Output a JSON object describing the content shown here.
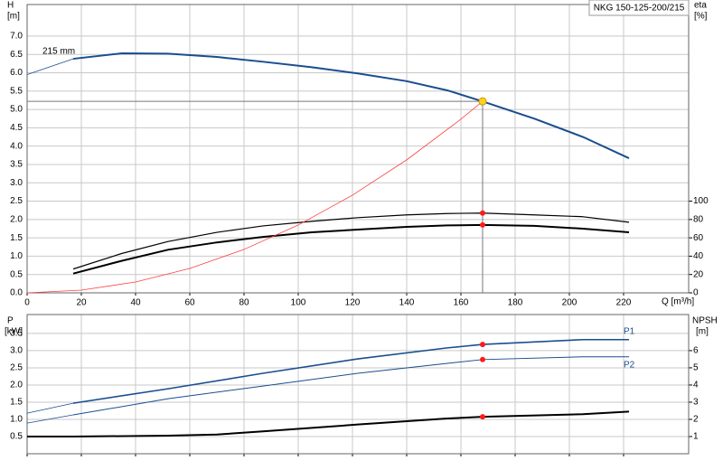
{
  "chart_data": [
    {
      "type": "line",
      "legend": "NKG 150-125-200/215",
      "annotation": "215 mm",
      "ylabel": "H",
      "yunit": "[m]",
      "y2label": "eta",
      "y2unit": "[%]",
      "xlabel": "Q [m³/h]",
      "xlim": [
        0,
        244
      ],
      "xticks": [
        0,
        20,
        40,
        60,
        80,
        100,
        120,
        140,
        160,
        180,
        200,
        220
      ],
      "ylim": [
        0,
        7.86
      ],
      "yticks": [
        {
          "value": 0,
          "label": "0.0"
        },
        0.5,
        {
          "value": 1,
          "label": "1.0"
        },
        1.5,
        {
          "value": 2,
          "label": "2.0"
        },
        2.5,
        {
          "value": 3,
          "label": "3.0"
        },
        3.5,
        {
          "value": 4,
          "label": "4.0"
        },
        4.5,
        {
          "value": 5,
          "label": "5.0"
        },
        5.5,
        {
          "value": 6,
          "label": "6.0"
        },
        6.5,
        {
          "value": 7,
          "label": "7.0"
        }
      ],
      "y2lim": [
        0,
        314.4
      ],
      "y2ticks": [
        0,
        20,
        40,
        60,
        80,
        100
      ],
      "grid": true,
      "duty_q": 168,
      "xtick_labels": true,
      "series": [
        {
          "color": "#1a4d8f",
          "width": 2,
          "thin_start": true,
          "marker": "#ffd21f",
          "crosshair": true,
          "x": [
            0,
            17,
            35,
            52,
            70,
            87,
            105,
            122,
            140,
            155,
            168,
            187,
            205,
            222
          ],
          "values": [
            5.95,
            6.38,
            6.53,
            6.52,
            6.43,
            6.3,
            6.15,
            5.98,
            5.77,
            5.52,
            5.22,
            4.75,
            4.25,
            3.67
          ]
        },
        {
          "color": "#000000",
          "width": 1.2,
          "axis": "y2",
          "marker": "#ff1a1a",
          "x": [
            17,
            35,
            52,
            70,
            87,
            105,
            122,
            140,
            155,
            168,
            187,
            205,
            222
          ],
          "values": [
            26,
            43,
            56,
            66,
            73,
            78,
            82,
            85,
            86.5,
            87,
            85,
            83,
            77
          ]
        },
        {
          "color": "#000000",
          "width": 2,
          "axis": "y2",
          "marker": "#ff1a1a",
          "x": [
            17,
            35,
            52,
            70,
            87,
            105,
            122,
            140,
            155,
            168,
            187,
            205,
            222
          ],
          "values": [
            21,
            35,
            47,
            55,
            61,
            66,
            69,
            72,
            73.5,
            74,
            73,
            70,
            66
          ]
        },
        {
          "color": "#ff4040",
          "width": 0.8,
          "x": [
            0,
            20,
            40,
            60,
            80,
            100,
            120,
            140,
            160,
            168
          ],
          "values": [
            0,
            0.074,
            0.296,
            0.666,
            1.184,
            1.849,
            2.663,
            3.625,
            4.735,
            5.22
          ]
        }
      ]
    },
    {
      "type": "line",
      "ylabel": "P",
      "yunit": "[kW]",
      "y2label": "NPSH",
      "y2unit": "[m]",
      "xlim": [
        0,
        244
      ],
      "xticks": [
        0,
        20,
        40,
        60,
        80,
        100,
        120,
        140,
        160,
        180,
        200,
        220
      ],
      "ylim": [
        0,
        4.05
      ],
      "yticks": [
        0.5,
        {
          "value": 1,
          "label": "1.0"
        },
        1.5,
        {
          "value": 2,
          "label": "2.0"
        },
        2.5,
        {
          "value": 3,
          "label": "3.0"
        },
        3.5
      ],
      "y2lim": [
        0,
        8.1
      ],
      "y2ticks": [
        1,
        2,
        3,
        4,
        5,
        6
      ],
      "grid": true,
      "duty_q": 168,
      "xtick_labels": false,
      "series": [
        {
          "name": "P1",
          "label_side": "above",
          "color": "#1a4d8f",
          "width": 1.6,
          "thin_start": true,
          "marker": "#ff1a1a",
          "x": [
            0,
            17,
            52,
            87,
            122,
            155,
            168,
            205,
            222
          ],
          "values": [
            1.18,
            1.47,
            1.89,
            2.34,
            2.76,
            3.08,
            3.18,
            3.32,
            3.32
          ]
        },
        {
          "name": "P2",
          "label_side": "below",
          "color": "#1a4d8f",
          "width": 1,
          "thin_start": true,
          "marker": "#ff1a1a",
          "x": [
            0,
            17,
            52,
            87,
            122,
            155,
            168,
            205,
            222
          ],
          "values": [
            0.89,
            1.13,
            1.6,
            1.97,
            2.34,
            2.63,
            2.74,
            2.82,
            2.82
          ]
        },
        {
          "color": "#000000",
          "width": 2,
          "axis": "y2",
          "marker": "#ff1a1a",
          "x": [
            0,
            17,
            52,
            70,
            87,
            122,
            155,
            168,
            205,
            222
          ],
          "values": [
            1.0,
            1.0,
            1.05,
            1.12,
            1.3,
            1.7,
            2.05,
            2.15,
            2.3,
            2.45
          ]
        }
      ]
    }
  ]
}
